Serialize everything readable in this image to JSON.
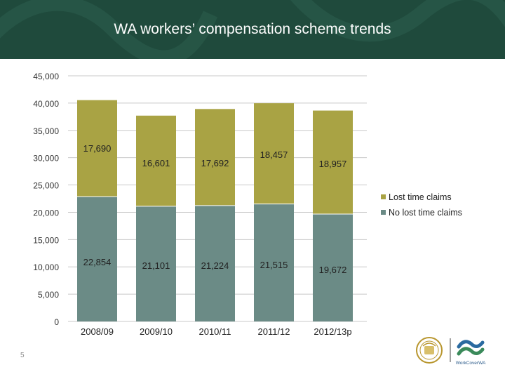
{
  "slide": {
    "title": "WA workers’ compensation scheme trends",
    "page_number": "5",
    "logo_text": "WorkCoverWA"
  },
  "colors": {
    "header_bg": "#1f4a3c",
    "lost_time": "#a9a344",
    "no_lost_time": "#6b8b86"
  },
  "chart_data": {
    "type": "bar",
    "stacked": true,
    "title": "",
    "xlabel": "",
    "ylabel": "",
    "categories": [
      "2008/09",
      "2009/10",
      "2010/11",
      "2011/12",
      "2012/13p"
    ],
    "series": [
      {
        "name": "No lost time claims",
        "values": [
          22854,
          21101,
          21224,
          21515,
          19672
        ],
        "labels": [
          "22,854",
          "21,101",
          "21,224",
          "21,515",
          "19,672"
        ],
        "color": "#6b8b86"
      },
      {
        "name": "Lost time claims",
        "values": [
          17690,
          16601,
          17692,
          18457,
          18957
        ],
        "labels": [
          "17,690",
          "16,601",
          "17,692",
          "18,457",
          "18,957"
        ],
        "color": "#a9a344"
      }
    ],
    "ylim": [
      0,
      45000
    ],
    "yticks": [
      0,
      5000,
      10000,
      15000,
      20000,
      25000,
      30000,
      35000,
      40000,
      45000
    ],
    "ytick_labels": [
      "0",
      "5,000",
      "10,000",
      "15,000",
      "20,000",
      "25,000",
      "30,000",
      "35,000",
      "40,000",
      "45,000"
    ],
    "grid": true,
    "legend": {
      "position": "right",
      "entries": [
        "Lost time claims",
        "No lost time claims"
      ]
    }
  }
}
